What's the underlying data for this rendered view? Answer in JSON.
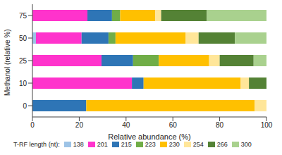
{
  "chart_data": {
    "type": "bar",
    "orientation": "horizontal",
    "stacked": true,
    "x_label": "Relative abundance (%)",
    "y_label": "Methanol (relative %)",
    "legend_title": "T-RF length (nt):",
    "legend": "bottom",
    "grid": false,
    "categories": [
      "0",
      "10",
      "25",
      "50",
      "75"
    ],
    "xlim": [
      0,
      100
    ],
    "xticks": [
      0,
      20,
      40,
      60,
      80,
      100
    ],
    "series": [
      {
        "name": "138",
        "color": "#9dc3e6",
        "values": [
          0,
          0,
          0,
          1.5,
          0
        ]
      },
      {
        "name": "201",
        "color": "#ff33cc",
        "values": [
          0,
          42.5,
          29.5,
          19.5,
          23.5
        ]
      },
      {
        "name": "215",
        "color": "#2e75b6",
        "values": [
          23,
          5,
          13.5,
          11.5,
          10.5
        ]
      },
      {
        "name": "223",
        "color": "#70ad47",
        "values": [
          0,
          0,
          11,
          3,
          3.5
        ]
      },
      {
        "name": "230",
        "color": "#ffc000",
        "values": [
          72,
          41.5,
          21.5,
          30,
          15
        ]
      },
      {
        "name": "254",
        "color": "#ffe699",
        "values": [
          5,
          3.5,
          4.5,
          5.5,
          2.5
        ]
      },
      {
        "name": "266",
        "color": "#548235",
        "values": [
          0,
          7.5,
          14.5,
          15.5,
          19.5
        ]
      },
      {
        "name": "300",
        "color": "#a9d18e",
        "values": [
          0,
          0,
          5.5,
          13.5,
          25.5
        ]
      }
    ]
  }
}
